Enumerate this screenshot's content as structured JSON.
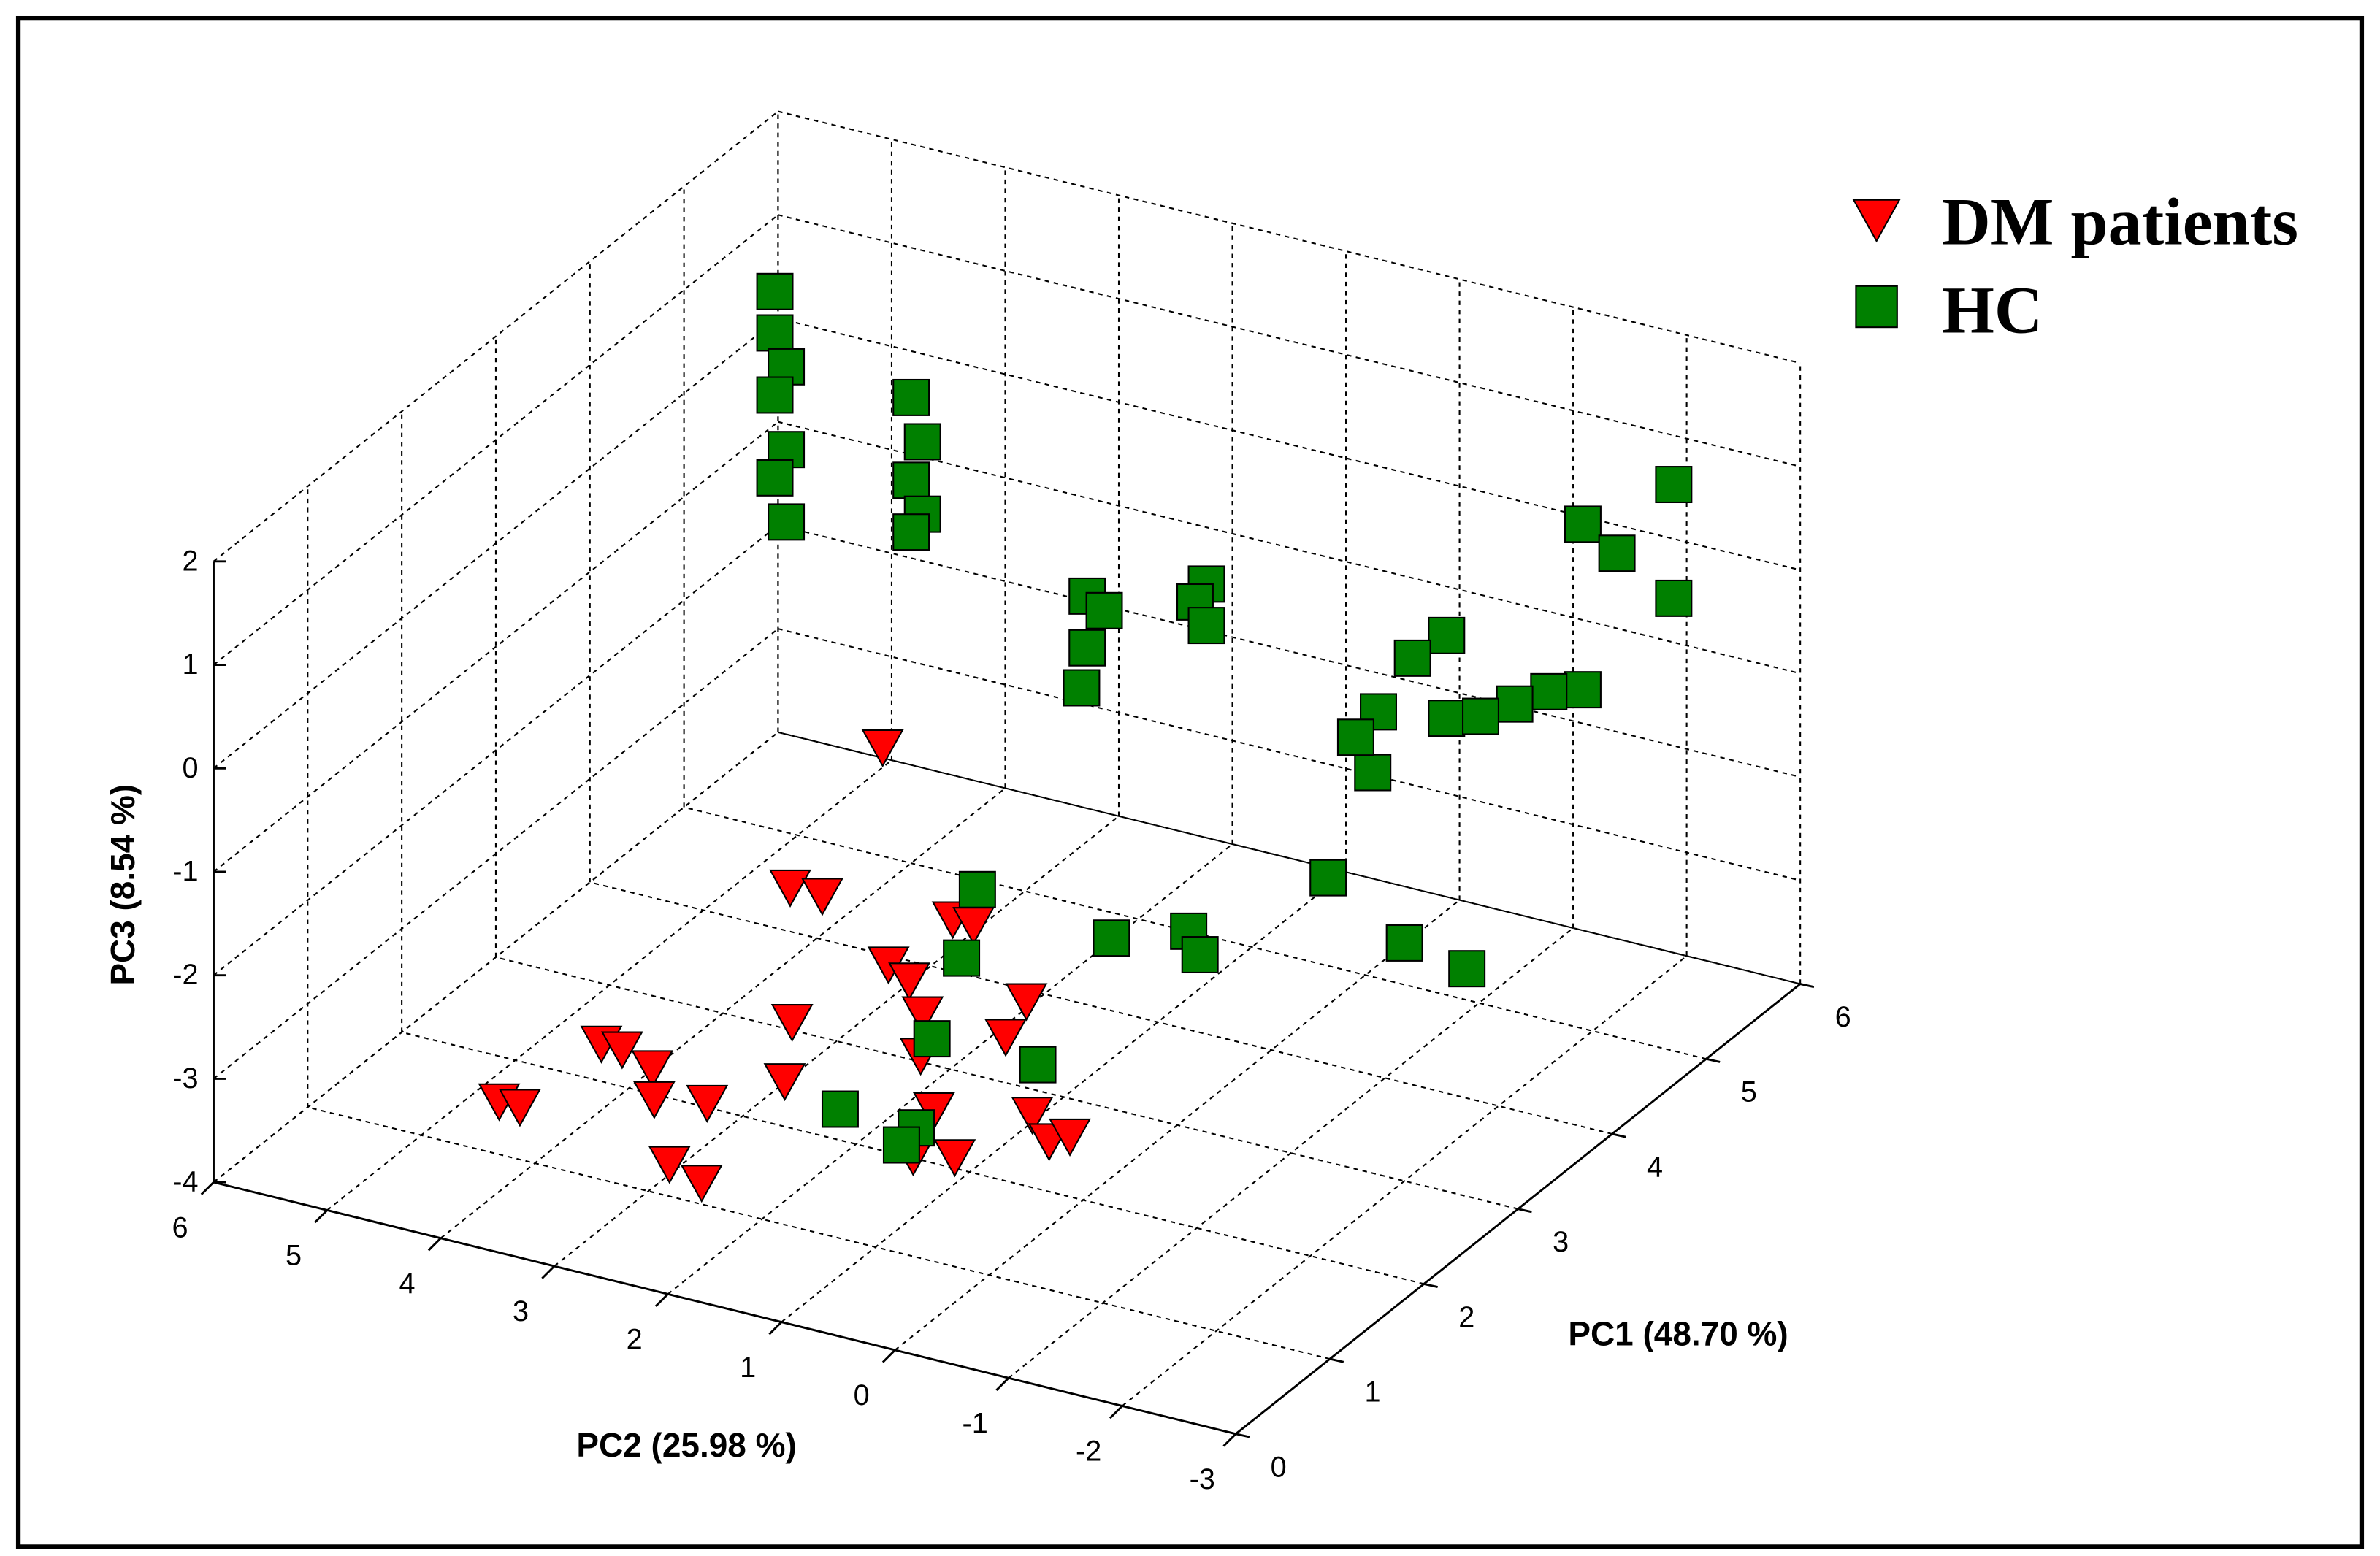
{
  "chart_data": {
    "type": "scatter3d",
    "xlabel": "PC1 (48.70 %)",
    "ylabel": "PC2 (25.98 %)",
    "zlabel": "PC3 (8.54 %)",
    "xlim": [
      0,
      6
    ],
    "xticks": [
      0,
      1,
      2,
      3,
      4,
      5,
      6
    ],
    "ylim": [
      -3,
      6
    ],
    "yticks": [
      -3,
      -2,
      -1,
      0,
      1,
      2,
      3,
      4,
      5,
      6
    ],
    "zlim": [
      -4,
      2
    ],
    "zticks": [
      -4,
      -3,
      -2,
      -1,
      0,
      1,
      2
    ],
    "grid": true,
    "legend": "upper right",
    "series": [
      {
        "name": "DM patients",
        "color": "#ff0000",
        "marker": "triangle-down",
        "x": [
          0.5,
          0.6,
          0.5,
          0.6,
          0.8,
          0.7,
          0.5,
          0.6,
          0.9,
          1.0,
          1.2,
          1.3,
          1.4,
          1.8,
          1.5,
          1.6,
          1.5,
          1.7,
          1.8,
          1.6,
          1.5,
          1.4,
          1.6,
          1.9,
          2.0,
          1.7,
          2.0,
          2.1
        ],
        "y": [
          3.9,
          3.8,
          3.0,
          2.9,
          2.8,
          2.7,
          2.4,
          2.2,
          2.4,
          1.8,
          1.9,
          2.0,
          1.8,
          1.6,
          1.3,
          1.2,
          1.0,
          0.9,
          0.8,
          1.1,
          0.9,
          1.0,
          0.8,
          0.6,
          0.5,
          0.2,
          0.3,
          0.2
        ],
        "z": [
          -3.0,
          -3.1,
          -2.2,
          -2.3,
          -2.6,
          -2.8,
          -3.2,
          -3.4,
          -2.9,
          -2.6,
          -2.2,
          -1.0,
          -1.1,
          0.1,
          -1.7,
          -1.9,
          -2.1,
          -1.3,
          -1.4,
          -2.6,
          -3.0,
          -3.4,
          -3.5,
          -2.5,
          -2.2,
          -3.0,
          -3.5,
          -3.5
        ]
      },
      {
        "name": "HC",
        "color": "#008000",
        "marker": "square",
        "x": [
          5,
          5,
          5,
          5,
          5,
          5,
          5,
          5,
          5,
          5,
          5,
          5,
          5,
          5,
          5,
          5,
          5,
          5,
          5,
          5.5,
          5.5,
          5.5,
          5.5,
          5.5,
          5.5,
          5.5,
          5.5,
          5.5,
          5.5,
          5.5,
          5.5,
          5.5,
          5.5,
          3,
          3,
          3,
          2,
          2,
          2,
          2,
          3,
          3,
          3,
          4,
          3,
          3
        ],
        "y": [
          5.2,
          5.2,
          5.1,
          5.2,
          5.1,
          5.2,
          5.1,
          4.0,
          3.9,
          4.0,
          3.9,
          4.0,
          2.45,
          2.3,
          2.45,
          2.5,
          1.4,
          1.5,
          1.4,
          -2.3,
          -2.3,
          -1.5,
          -1.8,
          -1.5,
          -1.2,
          -0.9,
          -0.3,
          0.0,
          -0.3,
          0.3,
          0.35,
          -0.6,
          0.5,
          1.76,
          1.9,
          2.16,
          2.14,
          1.47,
          1.6,
          0.4,
          0.58,
          -0.1,
          -0.2,
          -0.5,
          -2.0,
          -2.55
        ],
        "z": [
          1.2,
          0.8,
          0.5,
          0.2,
          -0.3,
          -0.6,
          -1.0,
          0.5,
          0.1,
          -0.3,
          -0.6,
          -0.8,
          -1.0,
          -1.1,
          -1.5,
          -1.9,
          -0.6,
          -0.8,
          -1.0,
          1.0,
          -0.1,
          0.4,
          0.2,
          -1.2,
          -1.3,
          -1.5,
          -1.0,
          -1.3,
          -1.8,
          -1.9,
          -2.5,
          -1.7,
          -2.2,
          -2.2,
          -2.9,
          -3.75,
          -3.7,
          -3.7,
          -3.9,
          -2.8,
          -2.35,
          -2.1,
          -2.3,
          -2.2,
          -1.7,
          -1.8
        ]
      }
    ]
  }
}
